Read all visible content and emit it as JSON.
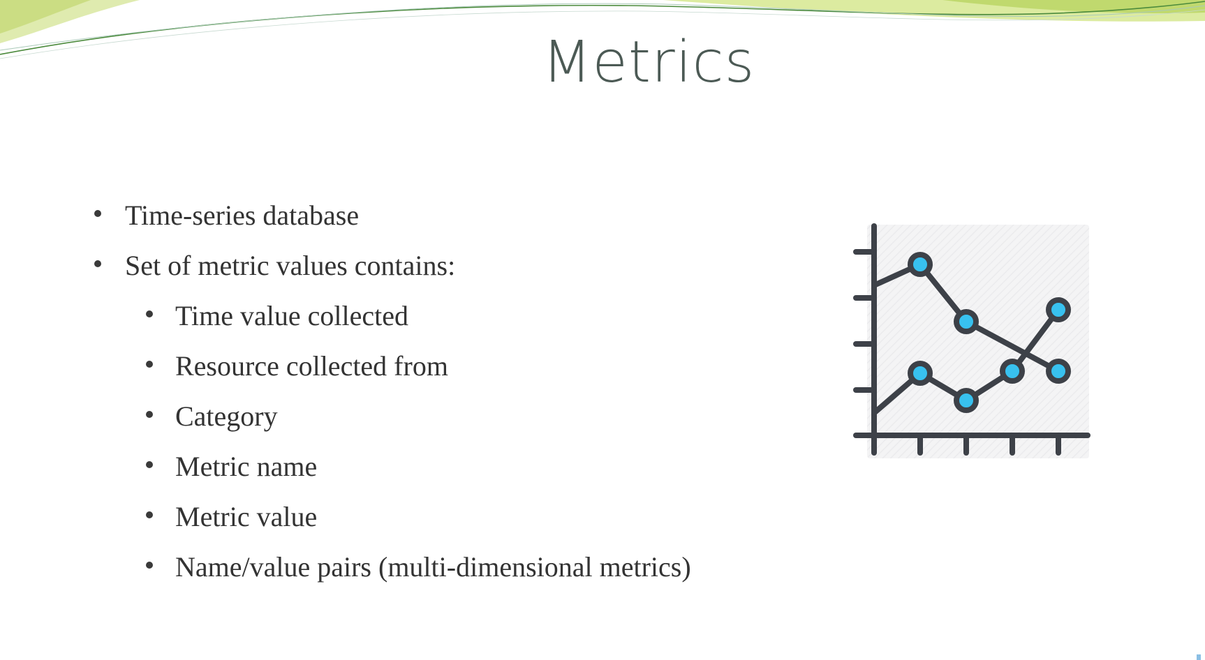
{
  "slide": {
    "title": "Metrics",
    "bullets": [
      {
        "text": "Time-series database",
        "level": 1
      },
      {
        "text": "Set of metric values contains:",
        "level": 1
      },
      {
        "text": "Time value collected",
        "level": 2
      },
      {
        "text": "Resource collected from",
        "level": 2
      },
      {
        "text": "Category",
        "level": 2
      },
      {
        "text": "Metric name",
        "level": 2
      },
      {
        "text": "Metric value",
        "level": 2
      },
      {
        "text": "Name/value pairs (multi-dimensional metrics)",
        "level": 2
      }
    ]
  },
  "icons": {
    "chart": "line-chart-icon"
  },
  "colors": {
    "title": "#4c5a55",
    "body_text": "#333333",
    "icon_stroke": "#3d4148",
    "icon_point": "#38c1ef",
    "accent_green": "#c9dc7e"
  }
}
